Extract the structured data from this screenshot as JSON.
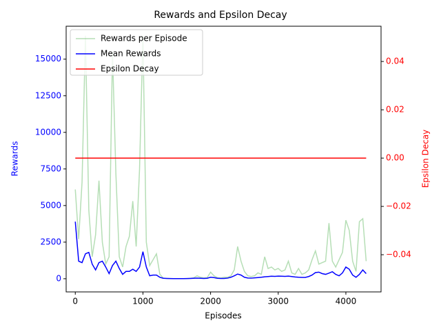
{
  "chart_data": {
    "type": "line",
    "title": "Rewards and Epsilon Decay",
    "x_label": "Episodes",
    "y_label": "Rewards",
    "y2_label": "Epsilon Decay",
    "y_color": "blue",
    "y2_color": "red",
    "legend": "upper left",
    "xlim": [
      -135,
      4520
    ],
    "xticks": [
      0,
      1000,
      2000,
      3000,
      4000
    ],
    "ylim": [
      -900,
      17250
    ],
    "yticks": [
      0,
      2500,
      5000,
      7500,
      10000,
      12500,
      15000
    ],
    "y2lim": [
      -0.0554,
      0.0546
    ],
    "y2ticks": [
      {
        "value": -0.04,
        "label": "−0.04"
      },
      {
        "value": -0.02,
        "label": "−0.02"
      },
      {
        "value": 0,
        "label": "0.00"
      },
      {
        "value": 0.02,
        "label": "0.02"
      },
      {
        "value": 0.04,
        "label": "0.04"
      }
    ],
    "x": [
      0,
      50,
      100,
      150,
      200,
      250,
      300,
      350,
      400,
      450,
      500,
      550,
      600,
      650,
      700,
      750,
      800,
      850,
      900,
      950,
      1000,
      1050,
      1100,
      1150,
      1200,
      1250,
      1300,
      1350,
      1400,
      1450,
      1500,
      1550,
      1600,
      1650,
      1700,
      1750,
      1800,
      1850,
      1900,
      1950,
      2000,
      2050,
      2100,
      2150,
      2200,
      2250,
      2300,
      2350,
      2400,
      2450,
      2500,
      2550,
      2600,
      2650,
      2700,
      2750,
      2800,
      2850,
      2900,
      2950,
      3000,
      3050,
      3100,
      3150,
      3200,
      3250,
      3300,
      3350,
      3400,
      3450,
      3500,
      3550,
      3600,
      3650,
      3700,
      3750,
      3800,
      3850,
      3900,
      3950,
      4000,
      4050,
      4100,
      4150,
      4200,
      4250,
      4300
    ],
    "series": [
      {
        "name": "Rewards per Episode",
        "color": "#2ca02c",
        "opacity": 0.35,
        "values": [
          6100,
          2700,
          6600,
          16600,
          4700,
          1500,
          3000,
          6700,
          2500,
          1000,
          1500,
          15500,
          7200,
          1500,
          800,
          2200,
          2900,
          5300,
          2200,
          7500,
          16600,
          2500,
          900,
          1300,
          1700,
          300,
          50,
          20,
          10,
          10,
          10,
          10,
          10,
          10,
          30,
          60,
          200,
          100,
          60,
          80,
          450,
          200,
          80,
          50,
          100,
          100,
          200,
          600,
          2200,
          1200,
          500,
          200,
          150,
          200,
          400,
          300,
          1500,
          700,
          800,
          600,
          700,
          500,
          600,
          1200,
          400,
          300,
          700,
          300,
          400,
          600,
          1300,
          1900,
          1000,
          1100,
          1200,
          3800,
          1200,
          800,
          1300,
          1800,
          4000,
          3300,
          1200,
          500,
          3900,
          4100,
          1200
        ]
      },
      {
        "name": "Mean Rewards",
        "color": "blue",
        "values": [
          3900,
          1200,
          1100,
          1700,
          1800,
          1000,
          600,
          1100,
          1200,
          800,
          350,
          900,
          1200,
          700,
          300,
          500,
          500,
          650,
          500,
          800,
          1850,
          800,
          200,
          250,
          250,
          100,
          30,
          20,
          15,
          10,
          10,
          10,
          10,
          15,
          20,
          30,
          40,
          30,
          20,
          30,
          100,
          80,
          30,
          20,
          20,
          40,
          100,
          200,
          320,
          250,
          100,
          50,
          40,
          60,
          80,
          100,
          130,
          150,
          170,
          160,
          180,
          170,
          160,
          180,
          150,
          120,
          100,
          90,
          90,
          150,
          250,
          420,
          450,
          350,
          300,
          380,
          480,
          300,
          200,
          400,
          800,
          650,
          250,
          100,
          300,
          600,
          350
        ]
      },
      {
        "name": "Epsilon Decay",
        "color": "red",
        "axis": "y2",
        "x": [
          0,
          4300
        ],
        "values": [
          0,
          0
        ]
      }
    ]
  }
}
